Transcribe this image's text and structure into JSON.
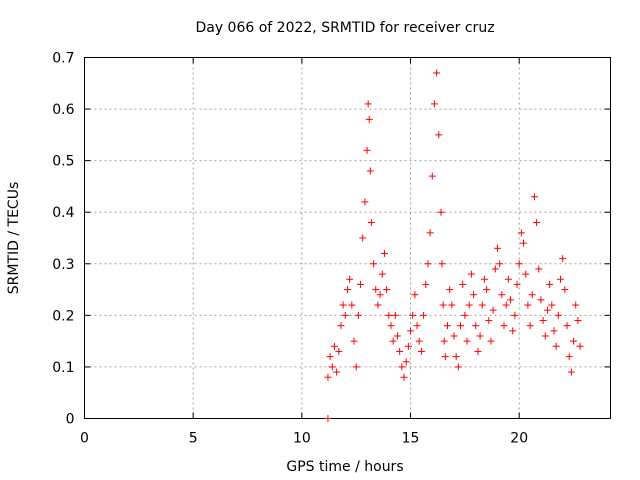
{
  "chart_data": {
    "type": "scatter",
    "title": "Day 066 of 2022, SRMTID for receiver cruz",
    "xlabel": "GPS time / hours",
    "ylabel": "SRMTID / TECUs",
    "xlim": [
      0,
      24.2
    ],
    "ylim": [
      0,
      0.7
    ],
    "xticks": [
      0,
      5,
      10,
      15,
      20
    ],
    "xtick_labels": [
      "0",
      "5",
      "10",
      "15",
      "20"
    ],
    "yticks": [
      0,
      0.1,
      0.2,
      0.3,
      0.4,
      0.5,
      0.6,
      0.7
    ],
    "ytick_labels": [
      "0",
      "0.1",
      "0.2",
      "0.3",
      "0.4",
      "0.5",
      "0.6",
      "0.7"
    ],
    "grid": true,
    "marker": "plus",
    "colors": {
      "series": "#ff0000",
      "grid": "#a0a0a0",
      "axis": "#000000"
    },
    "series": [
      {
        "name": "SRMTID",
        "x": [
          11.2,
          11.2,
          11.3,
          11.4,
          11.5,
          11.6,
          11.7,
          11.8,
          11.9,
          12.0,
          12.1,
          12.2,
          12.3,
          12.4,
          12.5,
          12.6,
          12.7,
          12.8,
          12.9,
          13.0,
          13.05,
          13.1,
          13.15,
          13.2,
          13.3,
          13.4,
          13.5,
          13.6,
          13.7,
          13.8,
          13.9,
          14.0,
          14.1,
          14.2,
          14.3,
          14.4,
          14.5,
          14.6,
          14.7,
          14.8,
          14.9,
          15.0,
          15.1,
          15.2,
          15.3,
          15.4,
          15.5,
          15.6,
          15.7,
          15.8,
          15.9,
          16.0,
          16.1,
          16.2,
          16.3,
          16.4,
          16.45,
          16.5,
          16.55,
          16.6,
          16.7,
          16.8,
          16.9,
          17.0,
          17.1,
          17.2,
          17.3,
          17.4,
          17.5,
          17.6,
          17.7,
          17.8,
          17.9,
          18.0,
          18.1,
          18.2,
          18.3,
          18.4,
          18.5,
          18.6,
          18.7,
          18.8,
          18.9,
          19.0,
          19.1,
          19.2,
          19.3,
          19.4,
          19.5,
          19.6,
          19.7,
          19.8,
          19.9,
          20.0,
          20.1,
          20.2,
          20.3,
          20.4,
          20.5,
          20.6,
          20.7,
          20.8,
          20.9,
          21.0,
          21.1,
          21.2,
          21.3,
          21.4,
          21.5,
          21.6,
          21.7,
          21.8,
          21.9,
          22.0,
          22.1,
          22.2,
          22.3,
          22.4,
          22.5,
          22.6,
          22.7,
          22.8
        ],
        "y": [
          0.0,
          0.08,
          0.12,
          0.1,
          0.14,
          0.09,
          0.13,
          0.18,
          0.22,
          0.2,
          0.25,
          0.27,
          0.22,
          0.15,
          0.1,
          0.2,
          0.26,
          0.35,
          0.42,
          0.52,
          0.61,
          0.58,
          0.48,
          0.38,
          0.3,
          0.25,
          0.22,
          0.24,
          0.28,
          0.32,
          0.25,
          0.2,
          0.18,
          0.15,
          0.2,
          0.16,
          0.13,
          0.1,
          0.08,
          0.11,
          0.14,
          0.17,
          0.2,
          0.24,
          0.18,
          0.15,
          0.13,
          0.2,
          0.26,
          0.3,
          0.36,
          0.47,
          0.61,
          0.67,
          0.55,
          0.4,
          0.3,
          0.22,
          0.15,
          0.12,
          0.18,
          0.25,
          0.22,
          0.16,
          0.12,
          0.1,
          0.18,
          0.26,
          0.2,
          0.15,
          0.22,
          0.28,
          0.24,
          0.18,
          0.13,
          0.16,
          0.22,
          0.27,
          0.25,
          0.19,
          0.15,
          0.21,
          0.29,
          0.33,
          0.3,
          0.24,
          0.18,
          0.22,
          0.27,
          0.23,
          0.17,
          0.2,
          0.26,
          0.3,
          0.36,
          0.34,
          0.28,
          0.22,
          0.18,
          0.24,
          0.43,
          0.38,
          0.29,
          0.23,
          0.19,
          0.16,
          0.21,
          0.26,
          0.22,
          0.17,
          0.14,
          0.2,
          0.27,
          0.31,
          0.25,
          0.18,
          0.12,
          0.09,
          0.15,
          0.22,
          0.19,
          0.14
        ]
      }
    ]
  }
}
